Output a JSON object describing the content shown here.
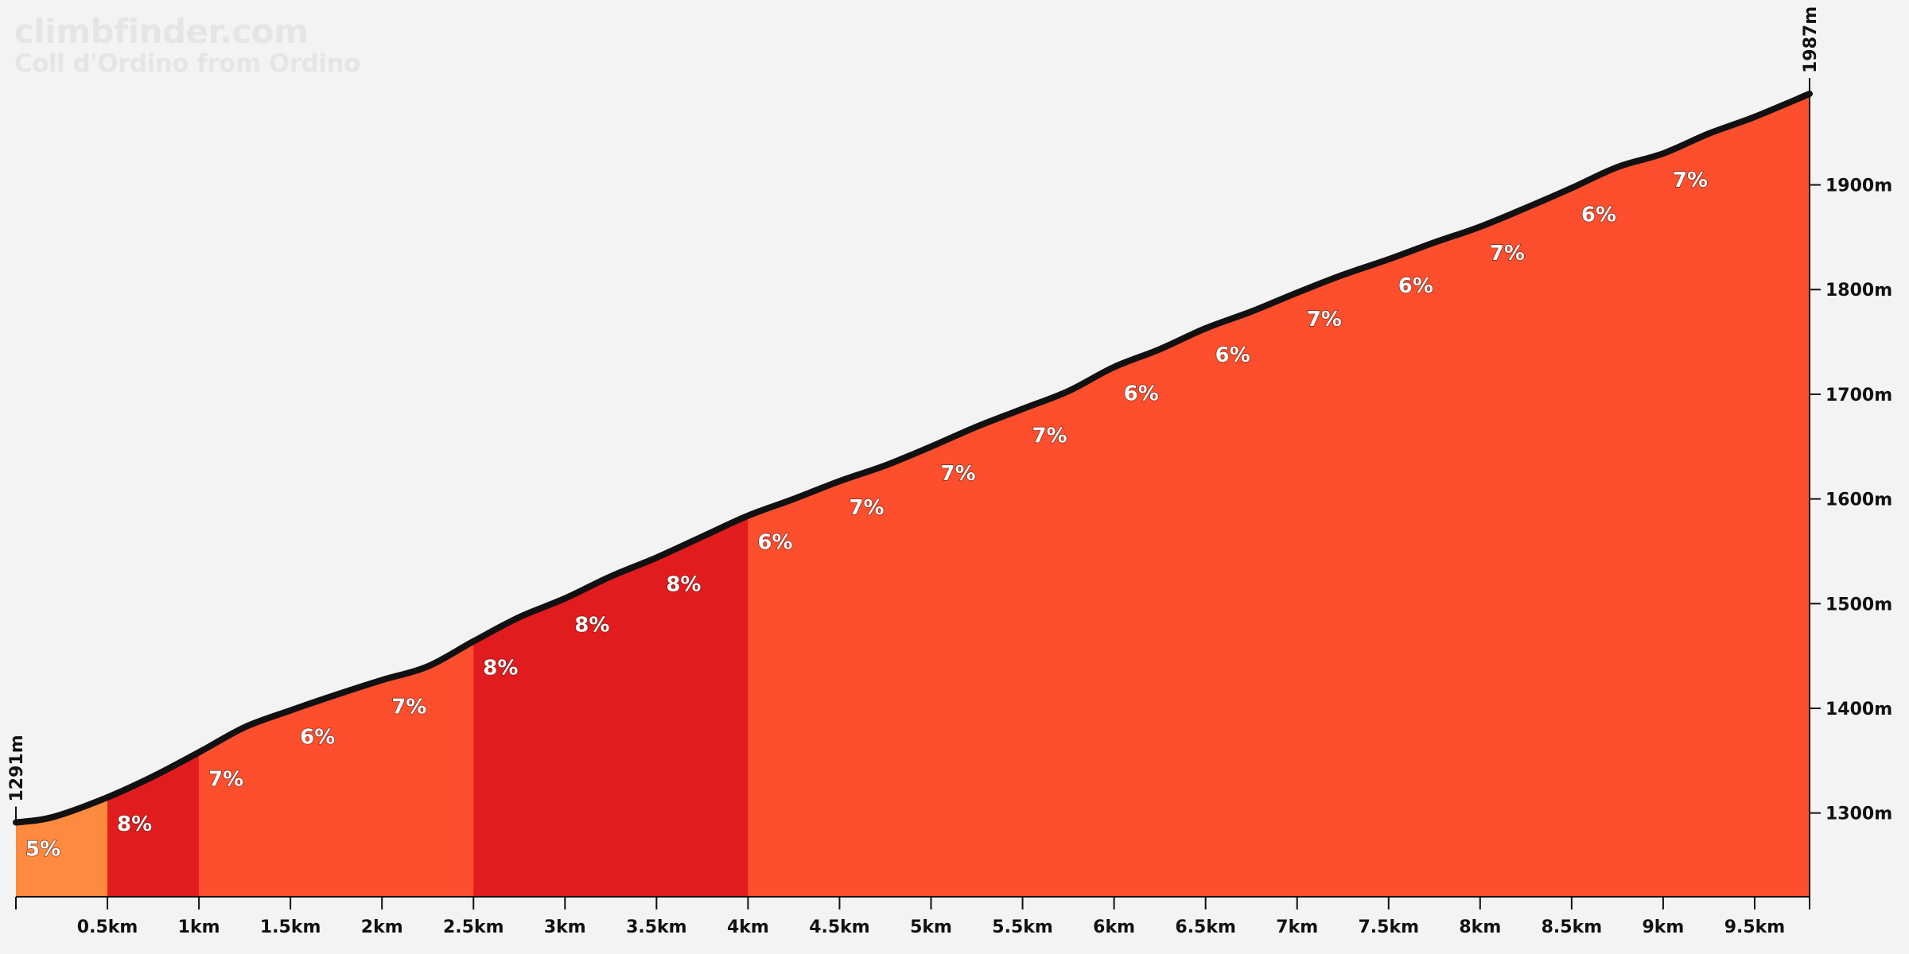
{
  "brand": {
    "site": "climbfinder.com",
    "climb_name": "Coll d'Ordino from Ordino"
  },
  "chart_data": {
    "type": "area",
    "title": "Coll d'Ordino from Ordino",
    "xlabel": "",
    "ylabel": "",
    "x_unit": "km",
    "y_unit": "m",
    "xlim": [
      0,
      9.8
    ],
    "ylim": [
      1220,
      1987
    ],
    "start_elevation_label": "1291m",
    "end_elevation_label": "1987m",
    "x_ticks": [
      {
        "value": 0.5,
        "label": "0.5km"
      },
      {
        "value": 1,
        "label": "1km"
      },
      {
        "value": 1.5,
        "label": "1.5km"
      },
      {
        "value": 2,
        "label": "2km"
      },
      {
        "value": 2.5,
        "label": "2.5km"
      },
      {
        "value": 3,
        "label": "3km"
      },
      {
        "value": 3.5,
        "label": "3.5km"
      },
      {
        "value": 4,
        "label": "4km"
      },
      {
        "value": 4.5,
        "label": "4.5km"
      },
      {
        "value": 5,
        "label": "5km"
      },
      {
        "value": 5.5,
        "label": "5.5km"
      },
      {
        "value": 6,
        "label": "6km"
      },
      {
        "value": 6.5,
        "label": "6.5km"
      },
      {
        "value": 7,
        "label": "7km"
      },
      {
        "value": 7.5,
        "label": "7.5km"
      },
      {
        "value": 8,
        "label": "8km"
      },
      {
        "value": 8.5,
        "label": "8.5km"
      },
      {
        "value": 9,
        "label": "9km"
      },
      {
        "value": 9.5,
        "label": "9.5km"
      }
    ],
    "y_ticks": [
      {
        "value": 1300,
        "label": "1300m"
      },
      {
        "value": 1400,
        "label": "1400m"
      },
      {
        "value": 1500,
        "label": "1500m"
      },
      {
        "value": 1600,
        "label": "1600m"
      },
      {
        "value": 1700,
        "label": "1700m"
      },
      {
        "value": 1800,
        "label": "1800m"
      },
      {
        "value": 1900,
        "label": "1900m"
      }
    ],
    "profile": [
      {
        "x": 0,
        "y": 1291
      },
      {
        "x": 0.2,
        "y": 1296
      },
      {
        "x": 0.5,
        "y": 1315
      },
      {
        "x": 0.75,
        "y": 1335
      },
      {
        "x": 1.0,
        "y": 1358
      },
      {
        "x": 1.25,
        "y": 1382
      },
      {
        "x": 1.5,
        "y": 1398
      },
      {
        "x": 1.75,
        "y": 1413
      },
      {
        "x": 2.0,
        "y": 1427
      },
      {
        "x": 2.25,
        "y": 1440
      },
      {
        "x": 2.5,
        "y": 1464
      },
      {
        "x": 2.75,
        "y": 1487
      },
      {
        "x": 3.0,
        "y": 1505
      },
      {
        "x": 3.25,
        "y": 1526
      },
      {
        "x": 3.5,
        "y": 1544
      },
      {
        "x": 3.75,
        "y": 1564
      },
      {
        "x": 4.0,
        "y": 1584
      },
      {
        "x": 4.25,
        "y": 1600
      },
      {
        "x": 4.5,
        "y": 1617
      },
      {
        "x": 4.75,
        "y": 1632
      },
      {
        "x": 5.0,
        "y": 1650
      },
      {
        "x": 5.25,
        "y": 1669
      },
      {
        "x": 5.5,
        "y": 1686
      },
      {
        "x": 5.75,
        "y": 1703
      },
      {
        "x": 6.0,
        "y": 1726
      },
      {
        "x": 6.25,
        "y": 1743
      },
      {
        "x": 6.5,
        "y": 1763
      },
      {
        "x": 6.75,
        "y": 1779
      },
      {
        "x": 7.0,
        "y": 1797
      },
      {
        "x": 7.25,
        "y": 1814
      },
      {
        "x": 7.5,
        "y": 1829
      },
      {
        "x": 7.75,
        "y": 1845
      },
      {
        "x": 8.0,
        "y": 1860
      },
      {
        "x": 8.25,
        "y": 1878
      },
      {
        "x": 8.5,
        "y": 1897
      },
      {
        "x": 8.75,
        "y": 1917
      },
      {
        "x": 9.0,
        "y": 1930
      },
      {
        "x": 9.25,
        "y": 1949
      },
      {
        "x": 9.5,
        "y": 1965
      },
      {
        "x": 9.8,
        "y": 1987
      }
    ],
    "segments": [
      {
        "x0": 0,
        "x1": 0.5,
        "grade": "5%",
        "color": "#fd8a3e"
      },
      {
        "x0": 0.5,
        "x1": 1,
        "grade": "8%",
        "color": "#e01c1f"
      },
      {
        "x0": 1,
        "x1": 1.5,
        "grade": "7%",
        "color": "#fd4f2d"
      },
      {
        "x0": 1.5,
        "x1": 2,
        "grade": "6%",
        "color": "#fd4f2d"
      },
      {
        "x0": 2,
        "x1": 2.5,
        "grade": "7%",
        "color": "#fd4f2d"
      },
      {
        "x0": 2.5,
        "x1": 3,
        "grade": "8%",
        "color": "#e01c1f"
      },
      {
        "x0": 3,
        "x1": 3.5,
        "grade": "8%",
        "color": "#e01c1f"
      },
      {
        "x0": 3.5,
        "x1": 4,
        "grade": "8%",
        "color": "#e01c1f"
      },
      {
        "x0": 4,
        "x1": 4.5,
        "grade": "6%",
        "color": "#fd4f2d"
      },
      {
        "x0": 4.5,
        "x1": 5,
        "grade": "7%",
        "color": "#fd4f2d"
      },
      {
        "x0": 5,
        "x1": 5.5,
        "grade": "7%",
        "color": "#fd4f2d"
      },
      {
        "x0": 5.5,
        "x1": 6,
        "grade": "7%",
        "color": "#fd4f2d"
      },
      {
        "x0": 6,
        "x1": 6.5,
        "grade": "6%",
        "color": "#fd4f2d"
      },
      {
        "x0": 6.5,
        "x1": 7,
        "grade": "6%",
        "color": "#fd4f2d"
      },
      {
        "x0": 7,
        "x1": 7.5,
        "grade": "7%",
        "color": "#fd4f2d"
      },
      {
        "x0": 7.5,
        "x1": 8,
        "grade": "6%",
        "color": "#fd4f2d"
      },
      {
        "x0": 8,
        "x1": 8.5,
        "grade": "7%",
        "color": "#fd4f2d"
      },
      {
        "x0": 8.5,
        "x1": 9,
        "grade": "6%",
        "color": "#fd4f2d"
      },
      {
        "x0": 9,
        "x1": 9.8,
        "grade": "7%",
        "color": "#fd4f2d"
      }
    ],
    "line_color": "#111111",
    "background_color": "#f3f3f3",
    "grid": false,
    "legend": "none"
  }
}
